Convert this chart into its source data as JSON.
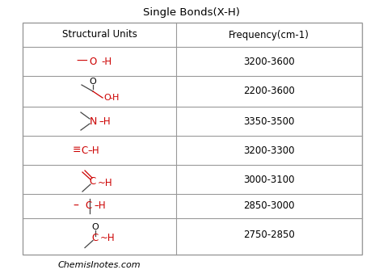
{
  "title": "Single Bonds(X-H)",
  "col1_header": "Structural Units",
  "col2_header": "Frequency(cm-1)",
  "footer": "ChemisInotes.com",
  "rows": [
    {
      "freq": "3200-3600"
    },
    {
      "freq": "2200-3600"
    },
    {
      "freq": "3350-3500"
    },
    {
      "freq": "3200-3300"
    },
    {
      "freq": "3000-3100"
    },
    {
      "freq": "2850-3000"
    },
    {
      "freq": "2750-2850"
    }
  ],
  "red_color": "#CC0000",
  "black_color": "#000000",
  "dark_gray": "#444444",
  "bg_color": "#FFFFFF",
  "border_color": "#999999",
  "title_fontsize": 9.5,
  "header_fontsize": 8.5,
  "cell_fontsize": 8.5,
  "footer_fontsize": 8
}
